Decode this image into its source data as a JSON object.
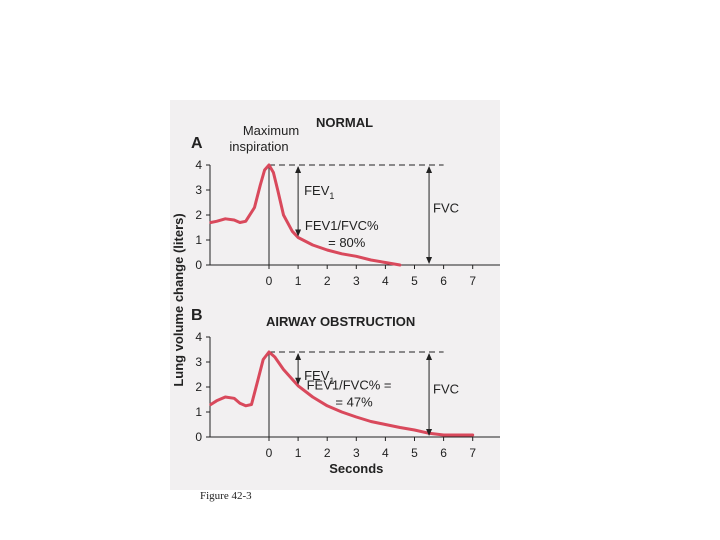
{
  "caption": "Figure 42-3",
  "colors": {
    "curve": "#d9495c",
    "axis": "#222222",
    "panel": "#f2f0f1"
  },
  "shared": {
    "ylabel": "Lung volume change (liters)",
    "xlabel": "Seconds"
  },
  "chart_data": [
    {
      "type": "line",
      "panel_letter": "A",
      "title": "NORMAL",
      "xlabel": "",
      "xlim": [
        -2,
        7.2
      ],
      "ylim": [
        0,
        4
      ],
      "x_ticks": [
        "0",
        "1",
        "2",
        "3",
        "4",
        "5",
        "6",
        "7"
      ],
      "y_ticks": [
        "0",
        "1",
        "2",
        "3",
        "4"
      ],
      "curve": {
        "x": [
          -2.0,
          -1.8,
          -1.5,
          -1.2,
          -1.0,
          -0.8,
          -0.5,
          -0.3,
          -0.15,
          0.0,
          0.15,
          0.3,
          0.5,
          0.8,
          1.0,
          1.5,
          2.0,
          2.5,
          3.0,
          3.5,
          4.0,
          4.5
        ],
        "y": [
          1.7,
          1.75,
          1.85,
          1.8,
          1.7,
          1.75,
          2.3,
          3.2,
          3.8,
          4.0,
          3.7,
          3.0,
          2.0,
          1.35,
          1.1,
          0.8,
          0.6,
          0.45,
          0.35,
          0.2,
          0.1,
          0.0
        ]
      },
      "annotations": {
        "max_inspiration": [
          "Maximum",
          "inspiration"
        ],
        "fev1": "FEV",
        "fev1_sub": "1",
        "ratio_line1": "FEV1/FVC%",
        "ratio_line2": "= 80%",
        "fvc": "FVC",
        "fev1_at": {
          "x": 1,
          "y": 1.1
        },
        "fvc_at": {
          "x": 5.5,
          "y": 0
        }
      }
    },
    {
      "type": "line",
      "panel_letter": "B",
      "title": "AIRWAY OBSTRUCTION",
      "xlabel": "Seconds",
      "xlim": [
        -2,
        7.2
      ],
      "ylim": [
        0,
        4
      ],
      "x_ticks": [
        "0",
        "1",
        "2",
        "3",
        "4",
        "5",
        "6",
        "7"
      ],
      "y_ticks": [
        "0",
        "1",
        "2",
        "3",
        "4"
      ],
      "curve": {
        "x": [
          -2.0,
          -1.8,
          -1.5,
          -1.2,
          -1.0,
          -0.8,
          -0.6,
          -0.4,
          -0.2,
          0.0,
          0.2,
          0.5,
          1.0,
          1.5,
          2.0,
          2.5,
          3.0,
          3.5,
          4.0,
          4.5,
          5.0,
          5.5,
          6.0,
          6.5,
          7.0
        ],
        "y": [
          1.3,
          1.45,
          1.6,
          1.55,
          1.35,
          1.25,
          1.3,
          2.2,
          3.1,
          3.4,
          3.2,
          2.7,
          2.05,
          1.6,
          1.25,
          1.0,
          0.8,
          0.62,
          0.5,
          0.38,
          0.28,
          0.15,
          0.08,
          0.08,
          0.08
        ]
      },
      "annotations": {
        "fev1": "FEV",
        "fev1_sub": "1",
        "ratio_line1": "FEV1/FVC% =",
        "ratio_line2": "= 47%",
        "fvc": "FVC",
        "fev1_at": {
          "x": 1,
          "y": 2.05
        },
        "fvc_at": {
          "x": 5.5,
          "y": 0
        }
      }
    }
  ]
}
